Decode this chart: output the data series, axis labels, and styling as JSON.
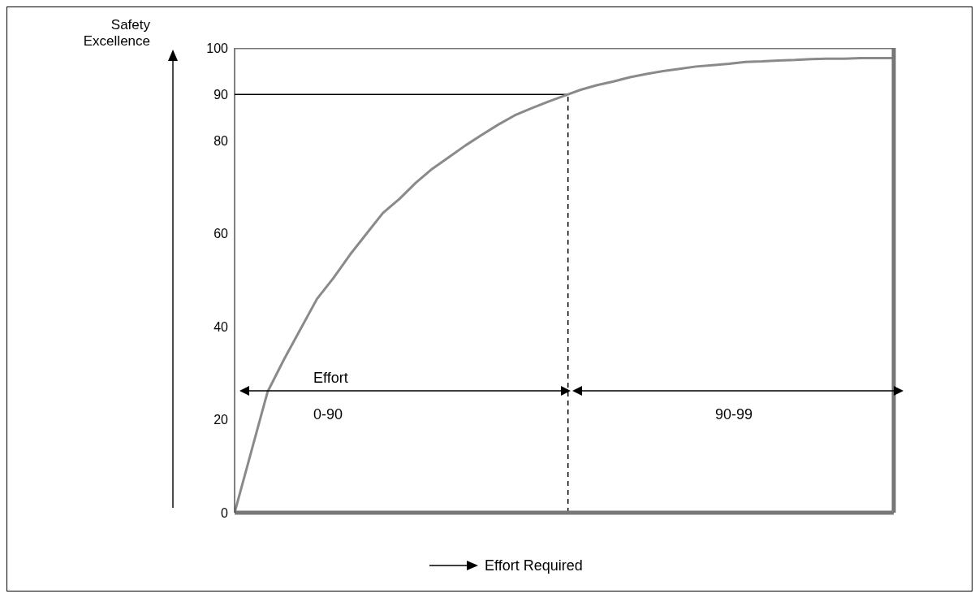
{
  "chart_data": {
    "type": "line",
    "ylabel": "Safety Excellence",
    "xlabel": "Effort Required",
    "categories": [
      null,
      null,
      null,
      null,
      null,
      null,
      null,
      null,
      null,
      null,
      null,
      null,
      null,
      null,
      null,
      null,
      null,
      null,
      null,
      null,
      null,
      null,
      null,
      null,
      null,
      null,
      null,
      null,
      null,
      null,
      null,
      null,
      null,
      null,
      null,
      null,
      null,
      null,
      null,
      null,
      null
    ],
    "series": [
      {
        "color": "#8a8a8a",
        "values": [
          0,
          13,
          26,
          33,
          39.5,
          46,
          50.5,
          55.5,
          60,
          64.5,
          67.5,
          71,
          74,
          76.5,
          79,
          81.3,
          83.5,
          85.5,
          87,
          88.4,
          89.7,
          91,
          92,
          92.8,
          93.7,
          94.4,
          95,
          95.5,
          96,
          96.3,
          96.6,
          97,
          97.1,
          97.3,
          97.4,
          97.6,
          97.7,
          97.7,
          97.8,
          97.8,
          97.8
        ]
      }
    ],
    "ylim": [
      0,
      100
    ],
    "yticks": [
      0,
      20,
      40,
      60,
      80,
      90,
      100
    ],
    "marker": "none",
    "ref_lines": [
      {
        "axis": "y",
        "value": 90,
        "color": "#000000"
      }
    ],
    "annotations": [
      "Effort",
      "0-90",
      "90-99"
    ]
  }
}
